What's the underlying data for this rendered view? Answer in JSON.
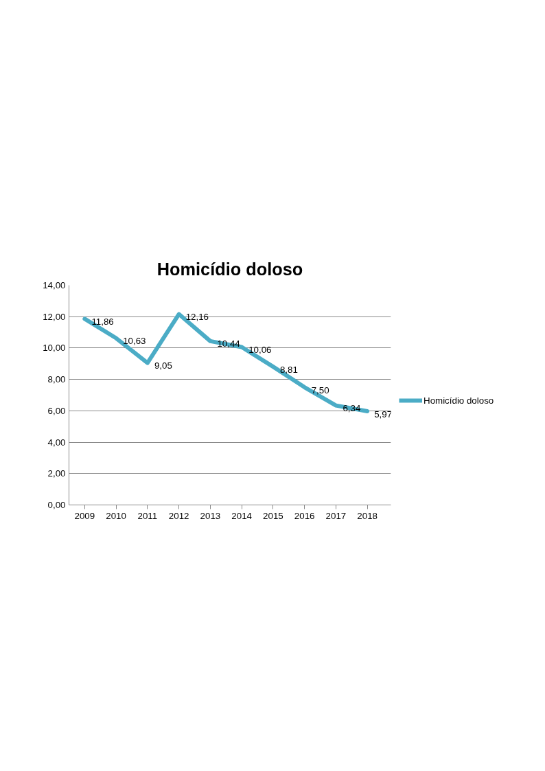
{
  "chart_data": {
    "type": "line",
    "title": "Homicídio doloso",
    "categories": [
      "2009",
      "2010",
      "2011",
      "2012",
      "2013",
      "2014",
      "2015",
      "2016",
      "2017",
      "2018"
    ],
    "series": [
      {
        "name": "Homicídio doloso",
        "color": "#4bacc6",
        "values": [
          11.86,
          10.63,
          9.05,
          12.16,
          10.44,
          10.06,
          8.81,
          7.5,
          6.34,
          5.97
        ],
        "value_labels": [
          "11,86",
          "10,63",
          "9,05",
          "12,16",
          "10,44",
          "10,06",
          "8,81",
          "7,50",
          "6,34",
          "5,97"
        ]
      }
    ],
    "ylim": [
      0,
      14
    ],
    "yticks": [
      {
        "value": 0,
        "label": "0,00"
      },
      {
        "value": 2,
        "label": "2,00"
      },
      {
        "value": 4,
        "label": "4,00"
      },
      {
        "value": 6,
        "label": "6,00"
      },
      {
        "value": 8,
        "label": "8,00"
      },
      {
        "value": 10,
        "label": "10,00"
      },
      {
        "value": 12,
        "label": "12,00"
      },
      {
        "value": 14,
        "label": "14,00"
      }
    ],
    "grid": "y",
    "legend": "right",
    "marker": "none",
    "line_style": "solid"
  }
}
